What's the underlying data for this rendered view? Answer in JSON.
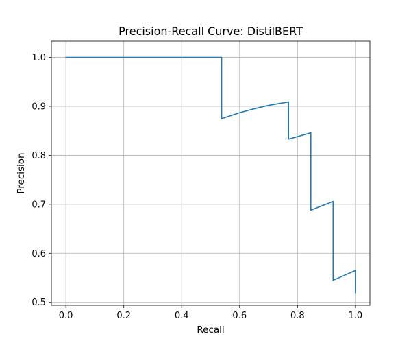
{
  "chart_data": {
    "type": "line",
    "title": "Precision-Recall Curve: DistilBERT",
    "xlabel": "Recall",
    "ylabel": "Precision",
    "xlim": [
      -0.05,
      1.05
    ],
    "ylim": [
      0.494,
      1.033
    ],
    "xticks": [
      0.0,
      0.2,
      0.4,
      0.6,
      0.8,
      1.0
    ],
    "yticks": [
      0.5,
      0.6,
      0.7,
      0.8,
      0.9,
      1.0
    ],
    "xtick_labels": [
      "0.0",
      "0.2",
      "0.4",
      "0.6",
      "0.8",
      "1.0"
    ],
    "ytick_labels": [
      "0.5",
      "0.6",
      "0.7",
      "0.8",
      "0.9",
      "1.0"
    ],
    "grid": true,
    "series": [
      {
        "color": "#1f77b4",
        "x": [
          0.0,
          0.538,
          0.538,
          0.6,
          0.65,
          0.7,
          0.769,
          0.769,
          0.846,
          0.846,
          0.923,
          0.923,
          1.0,
          1.0
        ],
        "y": [
          1.0,
          1.0,
          0.875,
          0.887,
          0.895,
          0.902,
          0.909,
          0.833,
          0.846,
          0.688,
          0.706,
          0.545,
          0.565,
          0.52
        ]
      }
    ]
  }
}
